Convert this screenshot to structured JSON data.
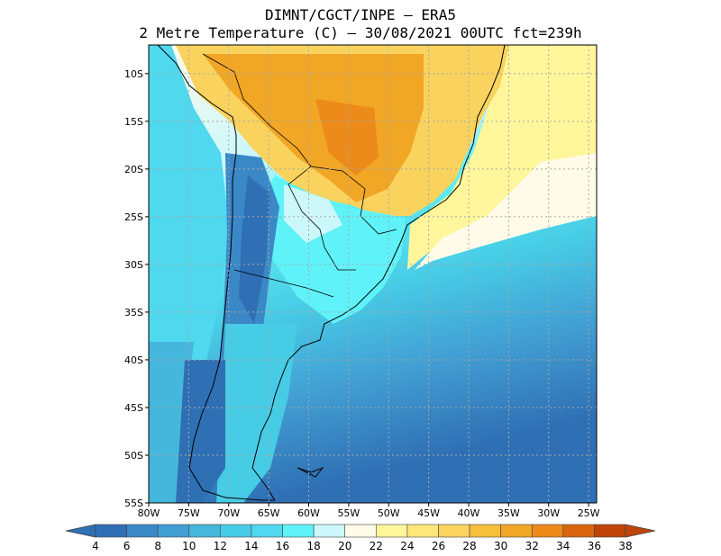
{
  "header": {
    "line1": "DIMNT/CGCT/INPE –  ERA5",
    "line2": "2 Metre Temperature (C) –  30/08/2021 00UTC fct=239h"
  },
  "map": {
    "lon_range": [
      -80,
      -24
    ],
    "lat_range": [
      -55,
      -7
    ],
    "lon_ticks": [
      {
        "value": -80,
        "label": "80W"
      },
      {
        "value": -75,
        "label": "75W"
      },
      {
        "value": -70,
        "label": "70W"
      },
      {
        "value": -65,
        "label": "65W"
      },
      {
        "value": -60,
        "label": "60W"
      },
      {
        "value": -55,
        "label": "55W"
      },
      {
        "value": -50,
        "label": "50W"
      },
      {
        "value": -45,
        "label": "45W"
      },
      {
        "value": -40,
        "label": "40W"
      },
      {
        "value": -35,
        "label": "35W"
      },
      {
        "value": -30,
        "label": "30W"
      },
      {
        "value": -25,
        "label": "25W"
      }
    ],
    "lat_ticks": [
      {
        "value": -10,
        "label": "10S"
      },
      {
        "value": -15,
        "label": "15S"
      },
      {
        "value": -20,
        "label": "20S"
      },
      {
        "value": -25,
        "label": "25S"
      },
      {
        "value": -30,
        "label": "30S"
      },
      {
        "value": -35,
        "label": "35S"
      },
      {
        "value": -40,
        "label": "40S"
      },
      {
        "value": -45,
        "label": "45S"
      },
      {
        "value": -50,
        "label": "50S"
      },
      {
        "value": -55,
        "label": "55S"
      }
    ],
    "grid": true
  },
  "colorbar": {
    "labels": [
      "4",
      "6",
      "8",
      "10",
      "12",
      "14",
      "16",
      "18",
      "20",
      "22",
      "24",
      "26",
      "28",
      "30",
      "32",
      "34",
      "36",
      "38"
    ],
    "colors": [
      "#2f6fb4",
      "#3b88c7",
      "#429fd3",
      "#45b6dc",
      "#47cce6",
      "#4fd8ee",
      "#5ff2f8",
      "#ccf7fb",
      "#fffbe8",
      "#fff69c",
      "#fde77a",
      "#f9d35d",
      "#f5bf3c",
      "#f1a626",
      "#ec8a1a",
      "#d9660f",
      "#c04408"
    ]
  }
}
